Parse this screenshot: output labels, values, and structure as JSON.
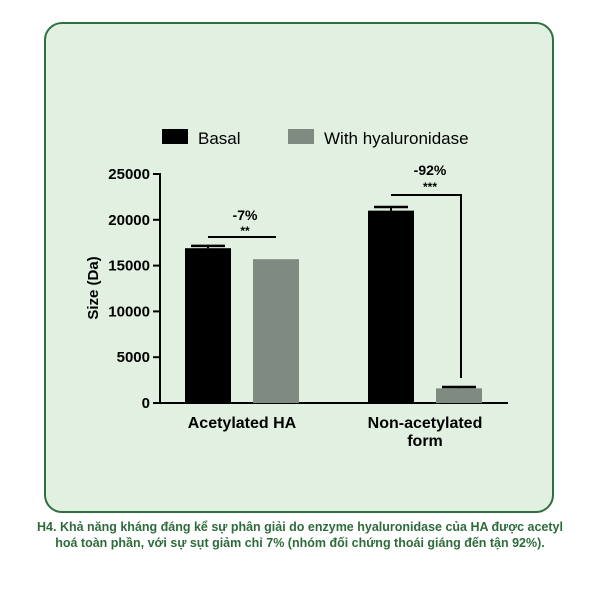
{
  "caption": "H4. Khả năng kháng đáng kể sự phân giải do enzyme hyaluronidase của HA được acetyl hoá toàn phần, với sự sụt giảm chỉ 7% (nhóm đối chứng thoái giáng đến tận 92%).",
  "chart_data": {
    "type": "bar",
    "categories": [
      "Acetylated HA",
      "Non-acetylated\nform"
    ],
    "series": [
      {
        "name": "Basal",
        "values": [
          16900,
          21000
        ],
        "error": [
          250,
          400
        ],
        "color": "#000000"
      },
      {
        "name": "With hyaluronidase",
        "values": [
          15700,
          1600
        ],
        "error": [
          0,
          150
        ],
        "color": "#7f8a80"
      }
    ],
    "ylabel": "Size (Da)",
    "ylim": [
      0,
      25000
    ],
    "yticks": [
      0,
      5000,
      10000,
      15000,
      20000,
      25000
    ],
    "grid": false,
    "legend": "top",
    "annotations": [
      {
        "category": 0,
        "percent": "-7%",
        "stars": "**"
      },
      {
        "category": 1,
        "percent": "-92%",
        "stars": "***"
      }
    ]
  }
}
